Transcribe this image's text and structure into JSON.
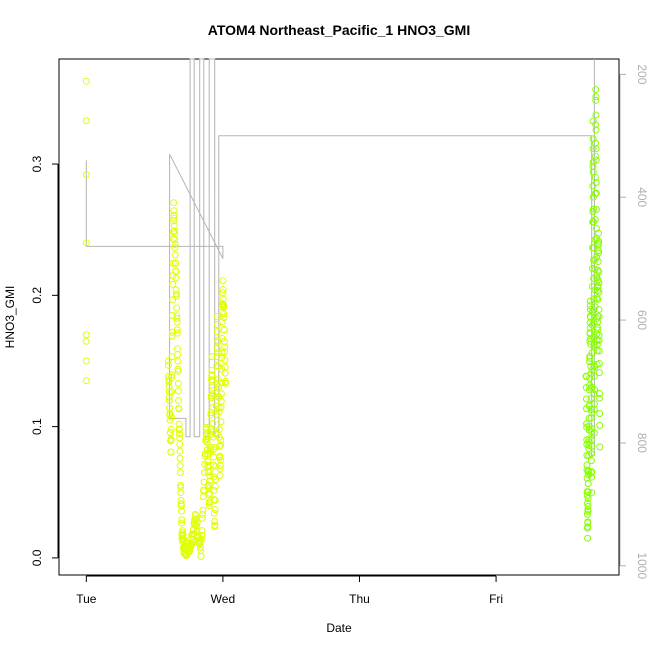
{
  "chart_data": {
    "type": "scatter",
    "title": "ATOM4 Northeast_Pacific_1 HNO3_GMI",
    "xlabel": "Date",
    "ylabel": "HNO3_GMI",
    "x_ticks": [
      "Tue",
      "Wed",
      "Thu",
      "Fri"
    ],
    "y_ticks": [
      "0.0",
      "0.1",
      "0.2",
      "0.3"
    ],
    "y_right_ticks": [
      "200",
      "400",
      "600",
      "800",
      "1000"
    ],
    "xlim_days": [
      -0.2,
      3.9
    ],
    "ylim": [
      -0.013,
      0.38
    ],
    "y_right_lim": [
      1015,
      175
    ],
    "colors": {
      "marker_yellow": "#e0ff00",
      "marker_green": "#88ff00",
      "pressure_line": "#b4b4b4",
      "axis": "#000000",
      "right_axis": "#b0b0b0"
    },
    "series": [
      {
        "marker": "circle",
        "color_key": "marker_yellow",
        "segments": [
          {
            "x": [
              0.0,
              0.0,
              0.0,
              0.0,
              0.0,
              0.0,
              0.0,
              0.0
            ],
            "y": [
              0.363,
              0.333,
              0.292,
              0.24,
              0.17,
              0.165,
              0.15,
              0.135
            ]
          },
          {
            "x_start": 0.6,
            "x_end": 1.02,
            "profile": [
              [
                0.6,
                0.15
              ],
              [
                0.62,
                0.08
              ],
              [
                0.64,
                0.27
              ],
              [
                0.66,
                0.2
              ],
              [
                0.68,
                0.1
              ],
              [
                0.7,
                0.02
              ],
              [
                0.72,
                0.005
              ],
              [
                0.76,
                0.01
              ],
              [
                0.8,
                0.03
              ],
              [
                0.84,
                0.005
              ],
              [
                0.88,
                0.1
              ],
              [
                0.9,
                0.04
              ],
              [
                0.92,
                0.15
              ],
              [
                0.94,
                0.02
              ],
              [
                0.96,
                0.18
              ],
              [
                0.98,
                0.06
              ],
              [
                1.0,
                0.21
              ],
              [
                1.02,
                0.13
              ]
            ]
          }
        ]
      },
      {
        "marker": "circle",
        "color_key": "marker_green",
        "segments": [
          {
            "x_start": 3.66,
            "x_end": 3.76,
            "profile": [
              [
                3.66,
                0.14
              ],
              [
                3.67,
                0.02
              ],
              [
                3.68,
                0.09
              ],
              [
                3.69,
                0.2
              ],
              [
                3.7,
                0.05
              ],
              [
                3.71,
                0.33
              ],
              [
                3.72,
                0.1
              ],
              [
                3.73,
                0.36
              ],
              [
                3.74,
                0.15
              ],
              [
                3.75,
                0.25
              ],
              [
                3.76,
                0.08
              ]
            ]
          }
        ]
      }
    ],
    "pressure_line": {
      "x": [
        0.0,
        0.0,
        0.0,
        1.0,
        1.0,
        0.61,
        0.61,
        0.73,
        0.73,
        0.76,
        0.76,
        0.79,
        0.79,
        0.83,
        0.83,
        0.86,
        0.86,
        0.9,
        0.9,
        0.94,
        0.94,
        0.97,
        0.97,
        3.7,
        3.7,
        3.72,
        3.72
      ],
      "y": [
        340,
        340,
        480,
        480,
        500,
        330,
        760,
        760,
        790,
        790,
        175,
        175,
        790,
        790,
        175,
        175,
        790,
        790,
        175,
        175,
        790,
        790,
        300,
        300,
        820,
        820,
        175
      ]
    }
  }
}
